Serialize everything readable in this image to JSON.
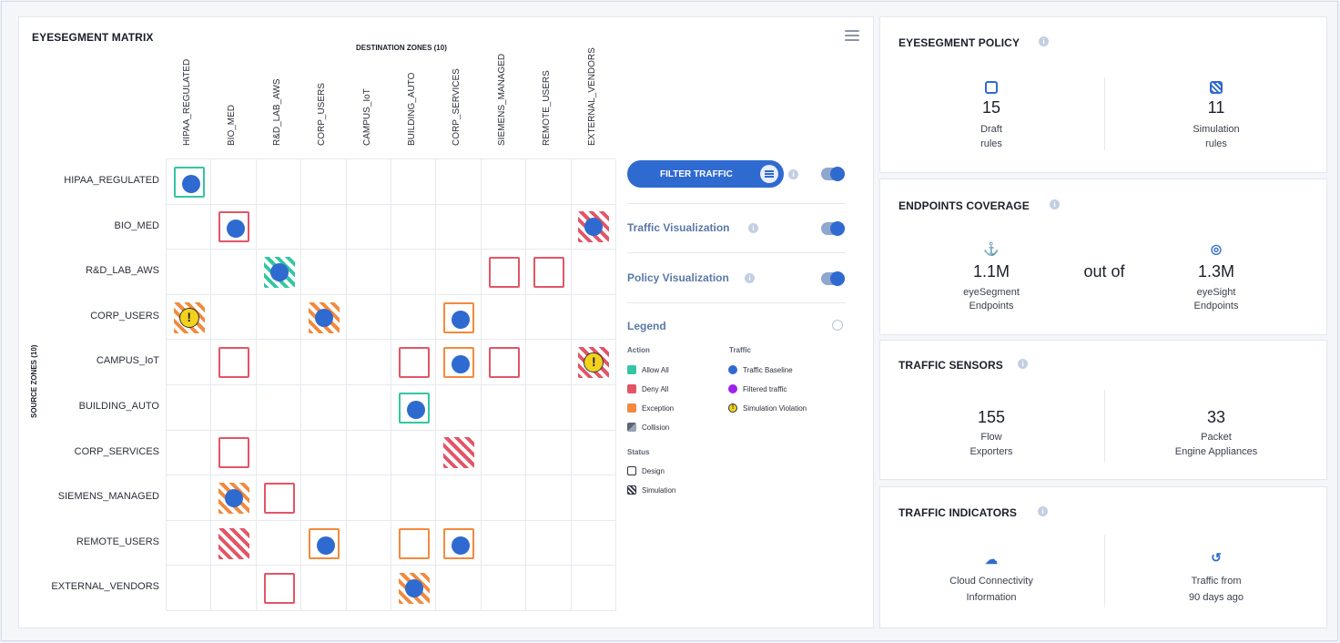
{
  "matrix": {
    "title": "EYESEGMENT MATRIX",
    "dest_title": "DESTINATION ZONES  (10)",
    "src_title": "SOURCE  ZONES  (10)",
    "columns": [
      "HIPAA_REGULATED",
      "BIO_MED",
      "R&D_LAB_AWS",
      "CORP_USERS",
      "CAMPUS_IoT",
      "BUILDING_AUTO",
      "CORP_SERVICES",
      "SIEMENS_MANAGED",
      "REMOTE_USERS",
      "EXTERNAL_VENDORS"
    ],
    "rows": [
      "HIPAA_REGULATED",
      "BIO_MED",
      "R&D_LAB_AWS",
      "CORP_USERS",
      "CAMPUS_IoT",
      "BUILDING_AUTO",
      "CORP_SERVICES",
      "SIEMENS_MANAGED",
      "REMOTE_USERS",
      "EXTERNAL_VENDORS"
    ],
    "cells": [
      {
        "row": 0,
        "col": 0,
        "action": "allow",
        "status": "design",
        "traffic": "baseline"
      },
      {
        "row": 1,
        "col": 1,
        "action": "deny",
        "status": "design",
        "traffic": "baseline"
      },
      {
        "row": 1,
        "col": 9,
        "action": "deny",
        "status": "simulation",
        "traffic": "baseline"
      },
      {
        "row": 2,
        "col": 2,
        "action": "allow",
        "status": "simulation",
        "traffic": "baseline"
      },
      {
        "row": 2,
        "col": 7,
        "action": "deny",
        "status": "design",
        "traffic": "none"
      },
      {
        "row": 2,
        "col": 8,
        "action": "deny",
        "status": "design",
        "traffic": "none"
      },
      {
        "row": 3,
        "col": 0,
        "action": "exception",
        "status": "simulation",
        "traffic": "violation"
      },
      {
        "row": 3,
        "col": 3,
        "action": "exception",
        "status": "simulation",
        "traffic": "baseline"
      },
      {
        "row": 3,
        "col": 6,
        "action": "exception",
        "status": "design",
        "traffic": "baseline"
      },
      {
        "row": 4,
        "col": 1,
        "action": "deny",
        "status": "design",
        "traffic": "none"
      },
      {
        "row": 4,
        "col": 5,
        "action": "deny",
        "status": "design",
        "traffic": "none"
      },
      {
        "row": 4,
        "col": 6,
        "action": "exception",
        "status": "design",
        "traffic": "baseline"
      },
      {
        "row": 4,
        "col": 7,
        "action": "deny",
        "status": "design",
        "traffic": "none"
      },
      {
        "row": 4,
        "col": 9,
        "action": "deny",
        "status": "simulation",
        "traffic": "violation"
      },
      {
        "row": 5,
        "col": 5,
        "action": "allow",
        "status": "design",
        "traffic": "baseline"
      },
      {
        "row": 6,
        "col": 1,
        "action": "deny",
        "status": "design",
        "traffic": "none"
      },
      {
        "row": 6,
        "col": 6,
        "action": "deny",
        "status": "simulation",
        "traffic": "none"
      },
      {
        "row": 7,
        "col": 1,
        "action": "exception",
        "status": "simulation",
        "traffic": "baseline"
      },
      {
        "row": 7,
        "col": 2,
        "action": "deny",
        "status": "design",
        "traffic": "none"
      },
      {
        "row": 8,
        "col": 1,
        "action": "deny",
        "status": "simulation",
        "traffic": "none"
      },
      {
        "row": 8,
        "col": 3,
        "action": "exception",
        "status": "design",
        "traffic": "baseline"
      },
      {
        "row": 8,
        "col": 5,
        "action": "exception",
        "status": "design",
        "traffic": "none"
      },
      {
        "row": 8,
        "col": 6,
        "action": "exception",
        "status": "design",
        "traffic": "baseline"
      },
      {
        "row": 9,
        "col": 2,
        "action": "deny",
        "status": "design",
        "traffic": "none"
      },
      {
        "row": 9,
        "col": 5,
        "action": "exception",
        "status": "simulation",
        "traffic": "baseline"
      }
    ]
  },
  "controls": {
    "filter_label": "FILTER TRAFFIC",
    "traffic_vis_label": "Traffic Visualization",
    "policy_vis_label": "Policy Visualization"
  },
  "legend": {
    "title": "Legend",
    "action_head": "Action",
    "traffic_head": "Traffic",
    "status_head": "Status",
    "allow": "Allow All",
    "deny": "Deny All",
    "exception": "Exception",
    "collision": "Collision",
    "baseline": "Traffic Baseline",
    "filtered": "Filtered traffic",
    "violation": "Simulation Violation",
    "design": "Design",
    "simulation": "Simulation"
  },
  "colors": {
    "allow": "#35c5a3",
    "deny": "#e25567",
    "exception": "#f28a3d",
    "baseline": "#2f6ad0",
    "filtered": "#a020f0",
    "violation": "#f2d21d"
  },
  "policy": {
    "title": "EYESEGMENT POLICY",
    "draft_value": "15",
    "draft_label_1": "Draft",
    "draft_label_2": "rules",
    "sim_value": "11",
    "sim_label_1": "Simulation",
    "sim_label_2": "rules"
  },
  "coverage": {
    "title": "ENDPOINTS COVERAGE",
    "left_value": "1.1M",
    "left_label_1": "eyeSegment",
    "left_label_2": "Endpoints",
    "middle": "out of",
    "right_value": "1.3M",
    "right_label_1": "eyeSight",
    "right_label_2": "Endpoints"
  },
  "sensors": {
    "title": "TRAFFIC SENSORS",
    "flow_value": "155",
    "flow_label_1": "Flow",
    "flow_label_2": "Exporters",
    "packet_value": "33",
    "packet_label_1": "Packet",
    "packet_label_2": "Engine Appliances"
  },
  "indicators": {
    "title": "TRAFFIC INDICATORS",
    "cloud_label_1": "Cloud Connectivity",
    "cloud_label_2": "Information",
    "history_label_1": "Traffic from",
    "history_label_2": "90 days ago"
  }
}
